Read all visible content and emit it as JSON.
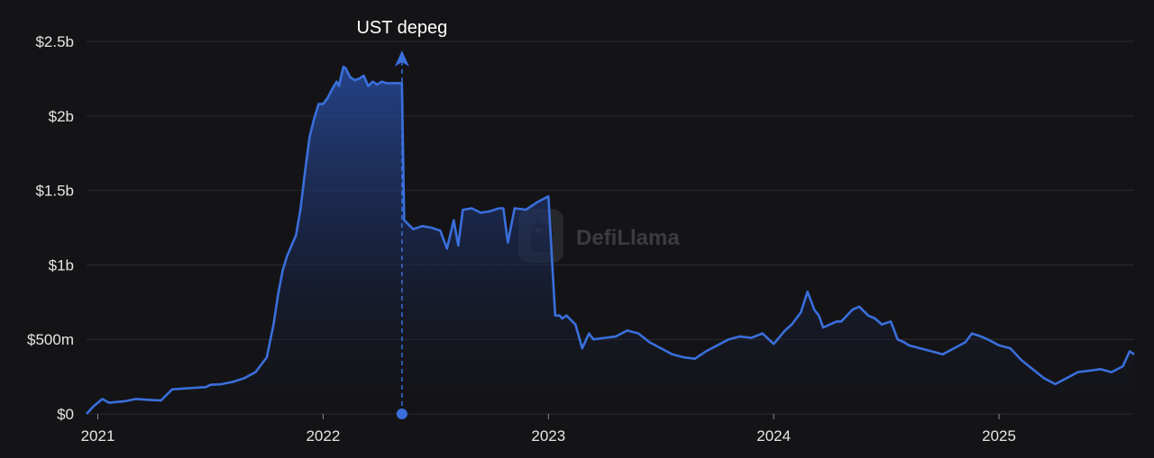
{
  "chart_data": {
    "type": "area",
    "title": "",
    "xlabel": "",
    "ylabel": "",
    "x_ticks": [
      "2021",
      "2022",
      "2023",
      "2024",
      "2025"
    ],
    "y_ticks": [
      "$0",
      "$500m",
      "$1b",
      "$1.5b",
      "$2.5b",
      "$2b"
    ],
    "y_tick_values": [
      0,
      500,
      1000,
      1500,
      2500,
      2000
    ],
    "ylim": [
      0,
      2500
    ],
    "xlim": [
      2020.95,
      2025.6
    ],
    "y_unit": "millions USD",
    "grid": "horizontal",
    "line_color": "#3a6fdc",
    "annotation": {
      "label": "UST depeg",
      "x": 2022.35,
      "y": 2220
    },
    "watermark": "DefiLlama",
    "series": [
      {
        "x": [
          2020.95,
          2020.98,
          2021.02,
          2021.05,
          2021.08,
          2021.12,
          2021.17,
          2021.22,
          2021.28,
          2021.33,
          2021.38,
          2021.43,
          2021.48,
          2021.5,
          2021.55,
          2021.6,
          2021.65,
          2021.7,
          2021.75,
          2021.78,
          2021.8,
          2021.82,
          2021.84,
          2021.86,
          2021.88,
          2021.9,
          2021.92,
          2021.94,
          2021.96,
          2021.98,
          2022.0,
          2022.02,
          2022.04,
          2022.06,
          2022.07,
          2022.09,
          2022.1,
          2022.12,
          2022.14,
          2022.16,
          2022.18,
          2022.2,
          2022.22,
          2022.24,
          2022.26,
          2022.28,
          2022.3,
          2022.32,
          2022.34,
          2022.35,
          2022.36,
          2022.4,
          2022.44,
          2022.48,
          2022.5,
          2022.52,
          2022.55,
          2022.58,
          2022.6,
          2022.62,
          2022.66,
          2022.7,
          2022.74,
          2022.78,
          2022.8,
          2022.82,
          2022.85,
          2022.9,
          2022.95,
          2023.0,
          2023.03,
          2023.05,
          2023.06,
          2023.08,
          2023.12,
          2023.15,
          2023.18,
          2023.2,
          2023.25,
          2023.3,
          2023.35,
          2023.4,
          2023.45,
          2023.5,
          2023.55,
          2023.6,
          2023.65,
          2023.7,
          2023.75,
          2023.8,
          2023.85,
          2023.9,
          2023.95,
          2024.0,
          2024.05,
          2024.08,
          2024.12,
          2024.15,
          2024.18,
          2024.2,
          2024.22,
          2024.25,
          2024.28,
          2024.3,
          2024.35,
          2024.38,
          2024.42,
          2024.45,
          2024.48,
          2024.52,
          2024.55,
          2024.58,
          2024.6,
          2024.65,
          2024.7,
          2024.75,
          2024.8,
          2024.85,
          2024.88,
          2024.92,
          2024.95,
          2025.0,
          2025.05,
          2025.1,
          2025.15,
          2025.2,
          2025.25,
          2025.3,
          2025.35,
          2025.4,
          2025.45,
          2025.5,
          2025.55,
          2025.58,
          2025.6
        ],
        "values": [
          0,
          50,
          100,
          75,
          80,
          85,
          100,
          95,
          90,
          165,
          170,
          175,
          180,
          195,
          200,
          215,
          240,
          280,
          380,
          600,
          800,
          960,
          1060,
          1130,
          1200,
          1380,
          1630,
          1860,
          1980,
          2080,
          2080,
          2120,
          2180,
          2230,
          2200,
          2330,
          2320,
          2260,
          2240,
          2250,
          2270,
          2200,
          2230,
          2210,
          2230,
          2220,
          2220,
          2220,
          2220,
          2220,
          1300,
          1240,
          1260,
          1250,
          1240,
          1230,
          1110,
          1300,
          1130,
          1370,
          1380,
          1350,
          1360,
          1380,
          1380,
          1150,
          1380,
          1370,
          1420,
          1460,
          660,
          660,
          640,
          660,
          600,
          440,
          540,
          500,
          510,
          520,
          560,
          540,
          480,
          440,
          400,
          380,
          370,
          420,
          460,
          500,
          520,
          510,
          540,
          470,
          560,
          600,
          680,
          820,
          700,
          660,
          580,
          600,
          620,
          620,
          700,
          720,
          660,
          640,
          600,
          620,
          500,
          480,
          460,
          440,
          420,
          400,
          440,
          480,
          540,
          520,
          500,
          460,
          440,
          360,
          300,
          240,
          200,
          240,
          280,
          290,
          300,
          280,
          320,
          420,
          400
        ]
      }
    ]
  }
}
